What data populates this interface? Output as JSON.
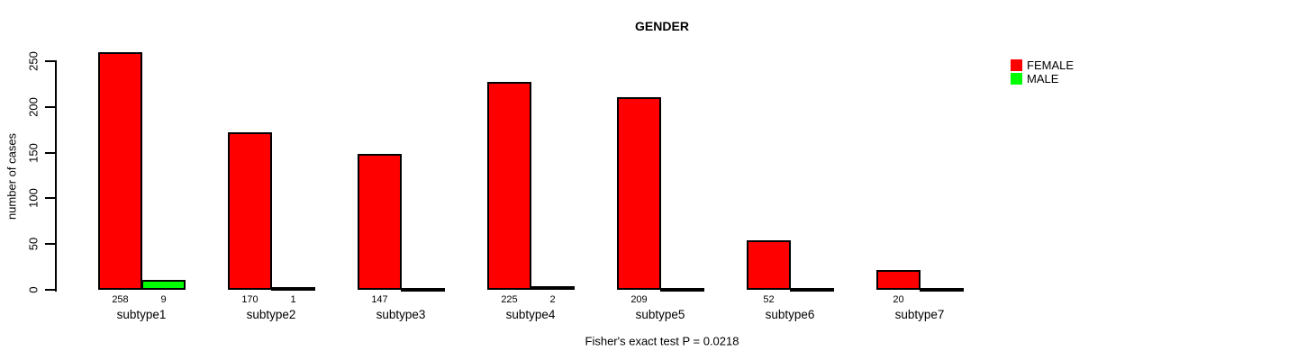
{
  "chart_data": {
    "type": "bar",
    "title": "GENDER",
    "ylabel": "number of cases",
    "xlabel": "",
    "categories": [
      "subtype1",
      "subtype2",
      "subtype3",
      "subtype4",
      "subtype5",
      "subtype6",
      "subtype7"
    ],
    "series": [
      {
        "name": "FEMALE",
        "color": "#FF0000",
        "values": [
          258,
          170,
          147,
          225,
          209,
          52,
          20
        ]
      },
      {
        "name": "MALE",
        "color": "#00FF00",
        "values": [
          9,
          1,
          0,
          2,
          0,
          0,
          0
        ]
      }
    ],
    "bar_value_labels_shown_when_nonzero": true,
    "yticks": [
      0,
      50,
      100,
      150,
      200,
      250
    ],
    "ylim": [
      0,
      250
    ],
    "grid": false,
    "legend_position": "top-right",
    "footnote": "Fisher's exact test P = 0.0218"
  }
}
